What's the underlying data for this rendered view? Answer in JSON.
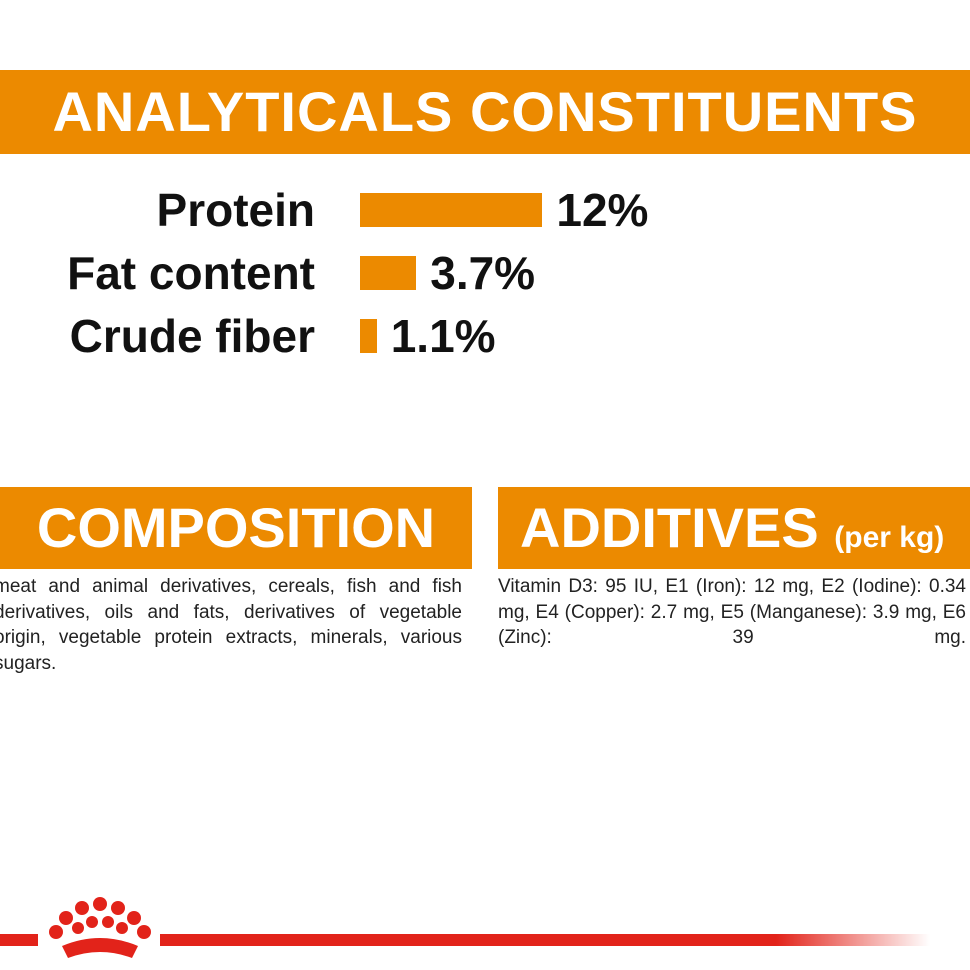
{
  "analyticals": {
    "title": "ANALYTICALS CONSTITUENTS",
    "items": [
      {
        "name": "Protein",
        "value": 12,
        "value_label": "12%"
      },
      {
        "name": "Fat content",
        "value": 3.7,
        "value_label": "3.7%"
      },
      {
        "name": "Crude fiber",
        "value": 1.1,
        "value_label": "1.1%"
      }
    ]
  },
  "composition": {
    "title": "COMPOSITION",
    "text": "meat and animal derivatives, cereals, fish and fish derivatives, oils and fats, derivatives of vegetable origin, vegetable protein extracts, minerals, various sugars."
  },
  "additives": {
    "title": "ADDITIVES",
    "note": "(per kg)",
    "text": "Vitamin D3: 95 IU, E1 (Iron): 12 mg, E2 (Iodine): 0.34 mg, E4 (Copper): 2.7 mg, E5 (Manganese): 3.9 mg, E6 (Zinc): 39 mg."
  }
}
